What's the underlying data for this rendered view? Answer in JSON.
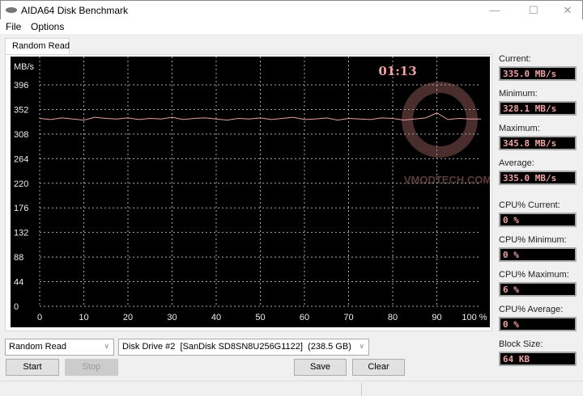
{
  "window": {
    "title": "AIDA64 Disk Benchmark"
  },
  "menu": [
    "File",
    "Options"
  ],
  "tab": "Random Read",
  "chart_data": {
    "type": "line",
    "ylabel": "MB/s",
    "y_ticks": [
      0,
      44,
      88,
      132,
      176,
      220,
      264,
      308,
      352,
      396
    ],
    "x_ticks": [
      "0",
      "10",
      "20",
      "30",
      "40",
      "50",
      "60",
      "70",
      "80",
      "90",
      "100 %"
    ],
    "xlim": [
      0,
      100
    ],
    "ylim": [
      0,
      440
    ],
    "grid": true,
    "elapsed": "01:13",
    "line_color": "#e8a0a0",
    "series": [
      {
        "x": [
          0,
          2.5,
          5,
          7.5,
          10,
          12.5,
          15,
          17.5,
          20,
          22.5,
          25,
          27.5,
          30,
          32.5,
          35,
          37.5,
          40,
          42.5,
          45,
          47.5,
          50,
          52.5,
          55,
          57.5,
          60,
          62.5,
          65,
          67.5,
          70,
          72.5,
          75,
          77.5,
          80,
          82.5,
          85,
          87.5,
          90,
          92.5,
          95,
          97.5,
          100
        ],
        "y": [
          336,
          334,
          337,
          335,
          333,
          338,
          336,
          335,
          337,
          334,
          336,
          335,
          338,
          334,
          336,
          337,
          335,
          333,
          336,
          335,
          337,
          334,
          336,
          338,
          334,
          335,
          337,
          333,
          336,
          335,
          334,
          337,
          336,
          333,
          335,
          337,
          345.8,
          334,
          336,
          335,
          335
        ]
      }
    ]
  },
  "watermark": "VMODTECH.COM",
  "stats": {
    "current_label": "Current:",
    "current": "335.0 MB/s",
    "minimum_label": "Minimum:",
    "minimum": "328.1 MB/s",
    "maximum_label": "Maximum:",
    "maximum": "345.8 MB/s",
    "average_label": "Average:",
    "average": "335.0 MB/s",
    "cpu_current_label": "CPU% Current:",
    "cpu_current": "0 %",
    "cpu_minimum_label": "CPU% Minimum:",
    "cpu_minimum": "0 %",
    "cpu_maximum_label": "CPU% Maximum:",
    "cpu_maximum": "6 %",
    "cpu_average_label": "CPU% Average:",
    "cpu_average": "0 %",
    "block_size_label": "Block Size:",
    "block_size": "64 KB"
  },
  "controls": {
    "test_select": "Random Read",
    "drive_select": "Disk Drive #2  [SanDisk SD8SN8U256G1122]  (238.5 GB)",
    "start": "Start",
    "stop": "Stop",
    "save": "Save",
    "clear": "Clear"
  }
}
